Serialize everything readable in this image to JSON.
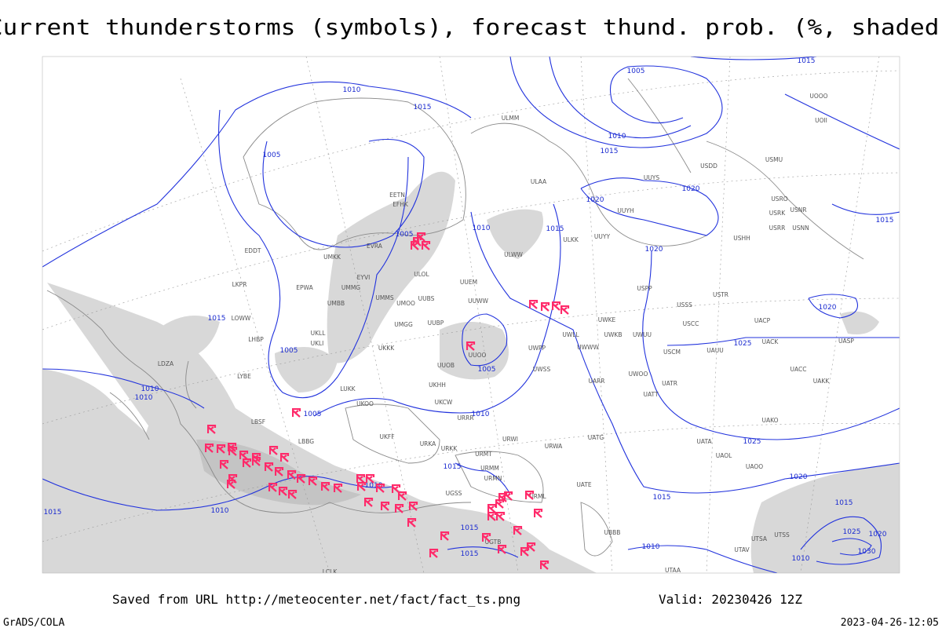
{
  "title": "Current thunderstorms (symbols), forecast thund. prob. (%, shaded)",
  "footer": {
    "source": "Saved from URL http://meteocenter.net/fact/fact_ts.png",
    "valid": "Valid: 20230426 12Z",
    "credit": "GrADS/COLA",
    "timestamp": "2023-04-26-12:05"
  },
  "isobar_labels": [
    "1010",
    "1015",
    "1005",
    "1005",
    "1010",
    "1015",
    "1015",
    "1005",
    "1005",
    "1010",
    "1010",
    "1005",
    "1010",
    "1015",
    "1010",
    "1010",
    "1015",
    "1015",
    "1015",
    "1010",
    "1015",
    "1020",
    "1025",
    "1025",
    "1020",
    "1020",
    "1020",
    "1020",
    "1010",
    "1015",
    "1005",
    "1015",
    "1015",
    "1015",
    "1020",
    "1025",
    "1030",
    "1010"
  ],
  "stations": [
    "ULMM",
    "ULAA",
    "ULKK",
    "UUYY",
    "ULWW",
    "UUEM",
    "UUWW",
    "UUYH",
    "UUYS",
    "USDD",
    "USMU",
    "USRO",
    "USRK",
    "USNR",
    "USRR",
    "USNN",
    "USHH",
    "USPP",
    "USSS",
    "USTR",
    "USCC",
    "UACP",
    "UWKE",
    "UWKB",
    "UWUU",
    "UWPP",
    "USCM",
    "UAUU",
    "UACK",
    "UASP",
    "UWWW",
    "UWLL",
    "UUOO",
    "UUOB",
    "UWSS",
    "UWOO",
    "UATT",
    "UATR",
    "UACC",
    "UAKK",
    "UARR",
    "UMMS",
    "UMOO",
    "UMGG",
    "UUBP",
    "UUBS",
    "ULOL",
    "UMKK",
    "UMMG",
    "UMBB",
    "EYVI",
    "EVRA",
    "EETN",
    "EFHK",
    "EDDT",
    "EPWA",
    "LKPR",
    "LOWW",
    "LHBP",
    "UKLL",
    "UKLI",
    "UKKK",
    "UKHH",
    "LUKK",
    "UKOO",
    "UKCW",
    "URRR",
    "URWI",
    "UATG",
    "URWA",
    "UATE",
    "UAOL",
    "UATA",
    "UAOO",
    "UAKO",
    "UTSA",
    "UTSS",
    "UTAV",
    "UTAA",
    "URML",
    "URMM",
    "URMN",
    "URMT",
    "UBBB",
    "UGTB",
    "UGSS",
    "LBSF",
    "LBBG",
    "LYBE",
    "LDZA",
    "UKFF",
    "URKK",
    "URKA",
    "LCLK",
    "UOOO",
    "UOII"
  ]
}
